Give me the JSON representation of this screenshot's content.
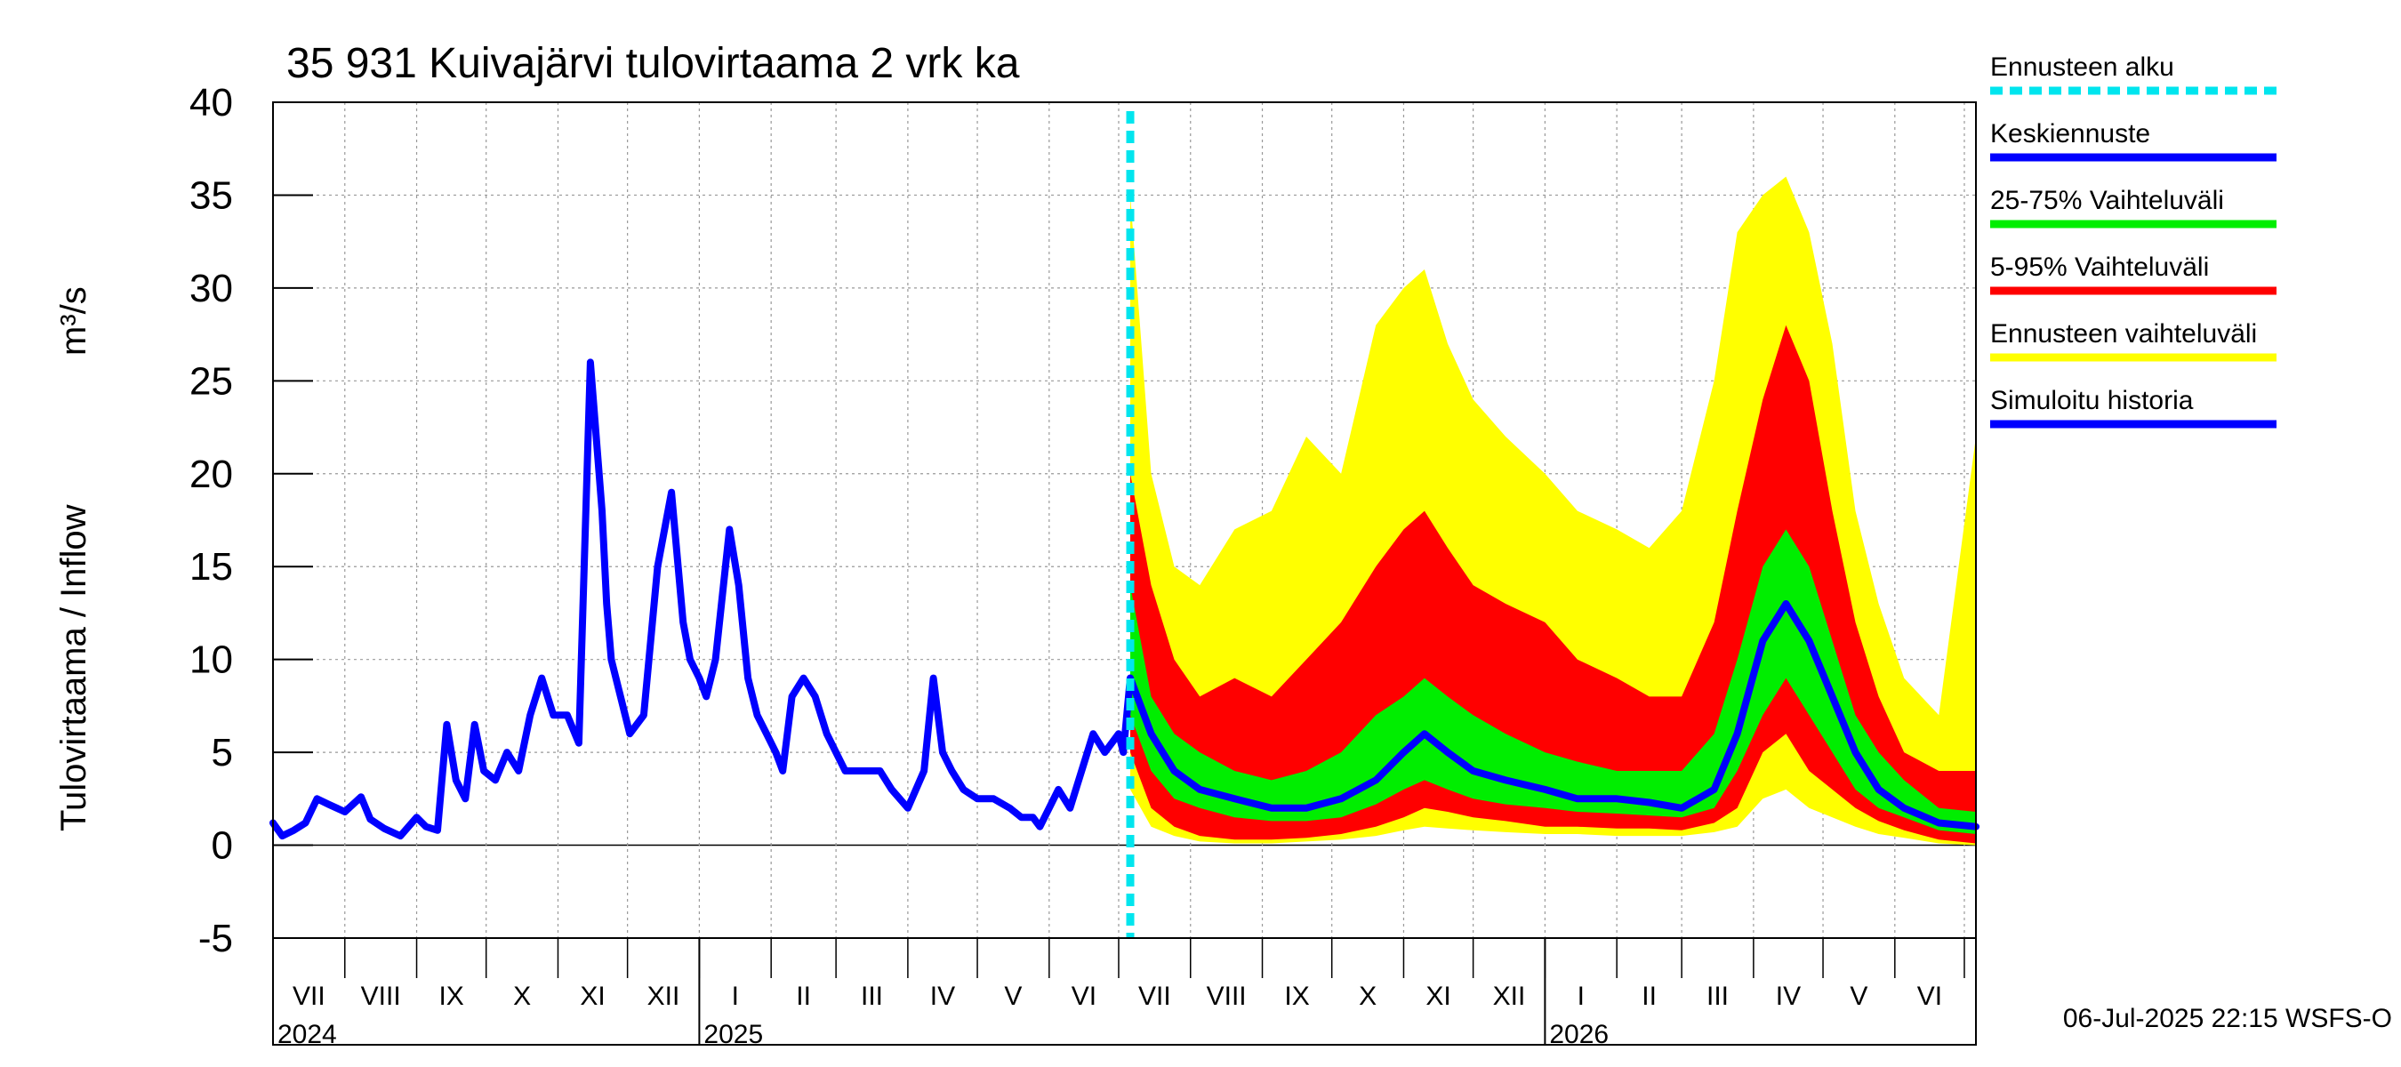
{
  "chart_data": {
    "type": "area",
    "title": "35 931 Kuivajärvi tulovirtaama 2 vrk ka",
    "ylabel": "Tulovirtaama / Inflow",
    "yunit": "m³/s",
    "ylim": [
      -5,
      40
    ],
    "yticks": [
      "-5",
      "0",
      "5",
      "10",
      "15",
      "20",
      "25",
      "30",
      "35",
      "40"
    ],
    "xlim": [
      "2024-07-01",
      "2026-07-06"
    ],
    "forecast_start": "2025-07-06",
    "months": [
      {
        "label": "VII",
        "start": "2024-07-01"
      },
      {
        "label": "VIII",
        "start": "2024-08-01"
      },
      {
        "label": "IX",
        "start": "2024-09-01"
      },
      {
        "label": "X",
        "start": "2024-10-01"
      },
      {
        "label": "XI",
        "start": "2024-11-01"
      },
      {
        "label": "XII",
        "start": "2024-12-01"
      },
      {
        "label": "I",
        "start": "2025-01-01"
      },
      {
        "label": "II",
        "start": "2025-02-01"
      },
      {
        "label": "III",
        "start": "2025-03-01"
      },
      {
        "label": "IV",
        "start": "2025-04-01"
      },
      {
        "label": "V",
        "start": "2025-05-01"
      },
      {
        "label": "VI",
        "start": "2025-06-01"
      },
      {
        "label": "VII",
        "start": "2025-07-01"
      },
      {
        "label": "VIII",
        "start": "2025-08-01"
      },
      {
        "label": "IX",
        "start": "2025-09-01"
      },
      {
        "label": "X",
        "start": "2025-10-01"
      },
      {
        "label": "XI",
        "start": "2025-11-01"
      },
      {
        "label": "XII",
        "start": "2025-12-01"
      },
      {
        "label": "I",
        "start": "2026-01-01"
      },
      {
        "label": "II",
        "start": "2026-02-01"
      },
      {
        "label": "III",
        "start": "2026-03-01"
      },
      {
        "label": "IV",
        "start": "2026-04-01"
      },
      {
        "label": "V",
        "start": "2026-05-01"
      },
      {
        "label": "VI",
        "start": "2026-06-01"
      },
      {
        "label": "",
        "start": "2026-07-01"
      }
    ],
    "years": [
      {
        "label": "2024",
        "at": "2024-07-01"
      },
      {
        "label": "2025",
        "at": "2025-01-01"
      },
      {
        "label": "2026",
        "at": "2026-01-01"
      }
    ],
    "history": {
      "name": "Simuloitu historia",
      "x": [
        "2024-07-01",
        "2024-07-05",
        "2024-07-10",
        "2024-07-15",
        "2024-07-20",
        "2024-07-25",
        "2024-08-01",
        "2024-08-08",
        "2024-08-12",
        "2024-08-18",
        "2024-08-25",
        "2024-09-01",
        "2024-09-05",
        "2024-09-10",
        "2024-09-14",
        "2024-09-18",
        "2024-09-22",
        "2024-09-26",
        "2024-09-30",
        "2024-10-05",
        "2024-10-10",
        "2024-10-15",
        "2024-10-20",
        "2024-10-25",
        "2024-10-30",
        "2024-11-05",
        "2024-11-10",
        "2024-11-15",
        "2024-11-20",
        "2024-11-22",
        "2024-11-24",
        "2024-11-28",
        "2024-12-02",
        "2024-12-08",
        "2024-12-14",
        "2024-12-20",
        "2024-12-25",
        "2024-12-28",
        "2025-01-01",
        "2025-01-04",
        "2025-01-08",
        "2025-01-14",
        "2025-01-18",
        "2025-01-22",
        "2025-01-26",
        "2025-01-30",
        "2025-02-03",
        "2025-02-06",
        "2025-02-10",
        "2025-02-15",
        "2025-02-20",
        "2025-02-25",
        "2025-03-01",
        "2025-03-05",
        "2025-03-10",
        "2025-03-15",
        "2025-03-20",
        "2025-03-25",
        "2025-04-01",
        "2025-04-08",
        "2025-04-12",
        "2025-04-16",
        "2025-04-20",
        "2025-04-25",
        "2025-05-01",
        "2025-05-08",
        "2025-05-15",
        "2025-05-20",
        "2025-05-25",
        "2025-05-28",
        "2025-06-01",
        "2025-06-05",
        "2025-06-10",
        "2025-06-15",
        "2025-06-20",
        "2025-06-25",
        "2025-07-01",
        "2025-07-03",
        "2025-07-06"
      ],
      "y": [
        1.2,
        0.5,
        0.8,
        1.2,
        2.5,
        2.2,
        1.8,
        2.6,
        1.4,
        0.9,
        0.5,
        1.5,
        1.0,
        0.8,
        6.5,
        3.5,
        2.5,
        6.5,
        4.0,
        3.5,
        5.0,
        4.0,
        7.0,
        9.0,
        7.0,
        7.0,
        5.5,
        26,
        18,
        13,
        10,
        8,
        6,
        7,
        15,
        19,
        12,
        10,
        9,
        8,
        10,
        17,
        14,
        9,
        7,
        6,
        5,
        4,
        8,
        9,
        8,
        6,
        5,
        4,
        4,
        4,
        4,
        3,
        2,
        4,
        9,
        5,
        4,
        3,
        2.5,
        2.5,
        2,
        1.5,
        1.5,
        1,
        2,
        3,
        2,
        4,
        6,
        5,
        6,
        5,
        9
      ]
    },
    "forecast": {
      "x": [
        "2025-07-06",
        "2025-07-15",
        "2025-07-25",
        "2025-08-05",
        "2025-08-20",
        "2025-09-05",
        "2025-09-20",
        "2025-10-05",
        "2025-10-20",
        "2025-11-01",
        "2025-11-10",
        "2025-11-20",
        "2025-12-01",
        "2025-12-15",
        "2026-01-01",
        "2026-01-15",
        "2026-02-01",
        "2026-02-15",
        "2026-03-01",
        "2026-03-15",
        "2026-03-25",
        "2026-04-05",
        "2026-04-15",
        "2026-04-25",
        "2026-05-05",
        "2026-05-15",
        "2026-05-25",
        "2026-06-05",
        "2026-06-20",
        "2026-07-06"
      ],
      "median": [
        9,
        6,
        4,
        3,
        2.5,
        2,
        2,
        2.5,
        3.5,
        5,
        6,
        5,
        4,
        3.5,
        3,
        2.5,
        2.5,
        2.3,
        2,
        3,
        6,
        11,
        13,
        11,
        8,
        5,
        3,
        2,
        1.2,
        1
      ],
      "p25": [
        7,
        4,
        2.5,
        2,
        1.5,
        1.3,
        1.3,
        1.5,
        2.2,
        3,
        3.5,
        3,
        2.5,
        2.2,
        2,
        1.8,
        1.7,
        1.6,
        1.5,
        2,
        4,
        7,
        9,
        7,
        5,
        3,
        2,
        1.5,
        0.8,
        0.6
      ],
      "p75": [
        14,
        8,
        6,
        5,
        4,
        3.5,
        4,
        5,
        7,
        8,
        9,
        8,
        7,
        6,
        5,
        4.5,
        4,
        4,
        4,
        6,
        10,
        15,
        17,
        15,
        11,
        7,
        5,
        3.5,
        2,
        1.8
      ],
      "p5": [
        5,
        2,
        1,
        0.5,
        0.3,
        0.3,
        0.4,
        0.6,
        1,
        1.5,
        2,
        1.8,
        1.5,
        1.3,
        1,
        1,
        0.9,
        0.9,
        0.8,
        1.2,
        2,
        5,
        6,
        4,
        3,
        2,
        1.3,
        0.8,
        0.3,
        0.1
      ],
      "p95": [
        20,
        14,
        10,
        8,
        9,
        8,
        10,
        12,
        15,
        17,
        18,
        16,
        14,
        13,
        12,
        10,
        9,
        8,
        8,
        12,
        18,
        24,
        28,
        25,
        18,
        12,
        8,
        5,
        4,
        4
      ],
      "min": [
        3,
        1,
        0.5,
        0.2,
        0.1,
        0.1,
        0.2,
        0.3,
        0.5,
        0.8,
        1,
        0.9,
        0.8,
        0.7,
        0.6,
        0.6,
        0.5,
        0.5,
        0.5,
        0.7,
        1,
        2.5,
        3,
        2,
        1.5,
        1,
        0.6,
        0.4,
        0.1,
        0
      ],
      "max": [
        35,
        20,
        15,
        14,
        17,
        18,
        22,
        20,
        28,
        30,
        31,
        27,
        24,
        22,
        20,
        18,
        17,
        16,
        18,
        25,
        33,
        35,
        36,
        33,
        27,
        18,
        13,
        9,
        7,
        22
      ]
    }
  },
  "legend": {
    "items": [
      {
        "label": "Ennusteen alku",
        "color": "#00e5ee",
        "style": "dashed"
      },
      {
        "label": "Keskiennuste",
        "color": "#0000ff",
        "style": "solid"
      },
      {
        "label": "25-75% Vaihteluväli",
        "color": "#00ee00",
        "style": "solid"
      },
      {
        "label": "5-95% Vaihteluväli",
        "color": "#ff0000",
        "style": "solid"
      },
      {
        "label": "Ennusteen vaihteluväli",
        "color": "#ffff00",
        "style": "solid"
      },
      {
        "label": "Simuloitu historia",
        "color": "#0000ff",
        "style": "solid"
      }
    ]
  },
  "footer": {
    "timestamp": "06-Jul-2025 22:15 WSFS-O"
  },
  "colors": {
    "envelope": "#ffff00",
    "p5_95": "#ff0000",
    "p25_75": "#00ee00",
    "median": "#0000ff",
    "history": "#0000ff",
    "forecast_start": "#00e5ee",
    "grid": "#999999"
  }
}
